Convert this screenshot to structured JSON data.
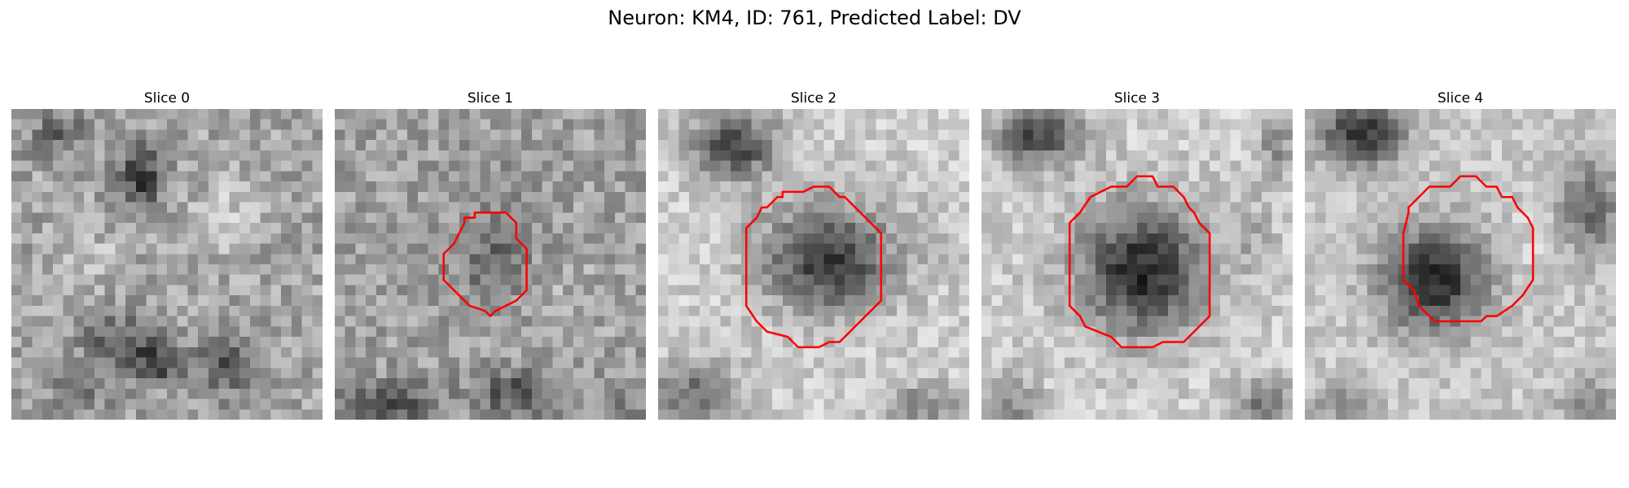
{
  "figure": {
    "title": "Neuron: KM4, ID: 761, Predicted Label: DV"
  },
  "panels": [
    {
      "title": "Slice 0",
      "has_contour": false
    },
    {
      "title": "Slice 1",
      "has_contour": true
    },
    {
      "title": "Slice 2",
      "has_contour": true
    },
    {
      "title": "Slice 3",
      "has_contour": true
    },
    {
      "title": "Slice 4",
      "has_contour": true
    }
  ],
  "style": {
    "contour_color": "#ff0000",
    "colormap": "grayscale"
  }
}
